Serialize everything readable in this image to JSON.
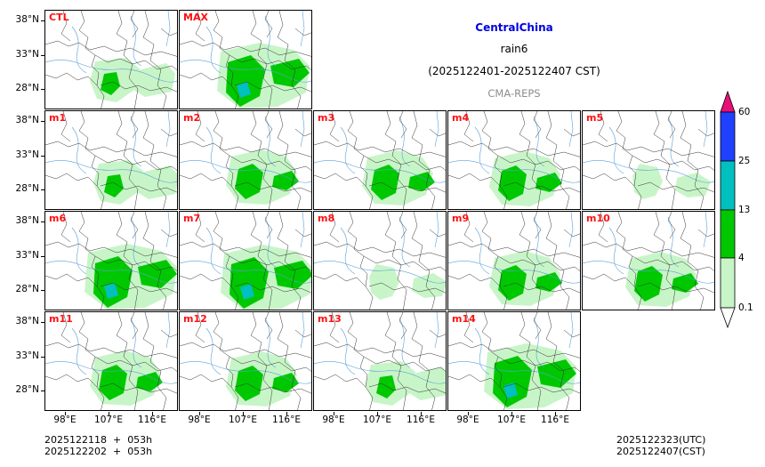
{
  "title": {
    "region": "CentralChina",
    "variable": "rain6",
    "period": "(2025122401-2025122407 CST)",
    "model": "CMA-REPS"
  },
  "panels": [
    {
      "label": "CTL",
      "intensity": 2
    },
    {
      "label": "MAX",
      "intensity": 4
    },
    {
      "label": "m1",
      "intensity": 2
    },
    {
      "label": "m2",
      "intensity": 3
    },
    {
      "label": "m3",
      "intensity": 3
    },
    {
      "label": "m4",
      "intensity": 3
    },
    {
      "label": "m5",
      "intensity": 1
    },
    {
      "label": "m6",
      "intensity": 4
    },
    {
      "label": "m7",
      "intensity": 4
    },
    {
      "label": "m8",
      "intensity": 1
    },
    {
      "label": "m9",
      "intensity": 3
    },
    {
      "label": "m10",
      "intensity": 3
    },
    {
      "label": "m11",
      "intensity": 3
    },
    {
      "label": "m12",
      "intensity": 3
    },
    {
      "label": "m13",
      "intensity": 2
    },
    {
      "label": "m14",
      "intensity": 4
    }
  ],
  "axes": {
    "lat_labels": [
      "38°N",
      "33°N",
      "28°N"
    ],
    "lon_labels": [
      "98°E",
      "107°E",
      "116°E"
    ]
  },
  "colorbar": {
    "levels": [
      "0.1",
      "4",
      "13",
      "25",
      "60"
    ],
    "colors": [
      "#c8f5c8",
      "#00c800",
      "#00c0c0",
      "#2040ff",
      "#e81078"
    ]
  },
  "footer": {
    "init_utc": "2025122118  +  053h",
    "init_cst": "2025122202  +  053h",
    "valid_utc": "2025122323(UTC)",
    "valid_cst": "2025122407(CST)"
  }
}
